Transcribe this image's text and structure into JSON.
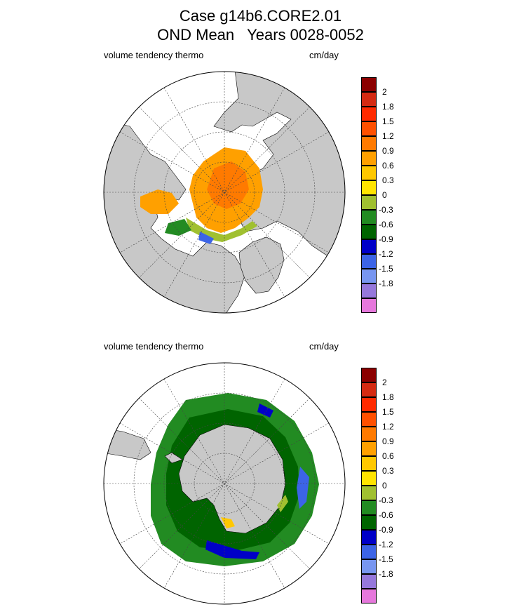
{
  "title": {
    "line1": "Case g14b6.CORE2.01",
    "line2": "OND Mean   Years 0028-0052"
  },
  "panels": [
    {
      "hemisphere": "north",
      "variable_label": "volume tendency thermo",
      "units_label": "cm/day"
    },
    {
      "hemisphere": "south",
      "variable_label": "volume tendency thermo",
      "units_label": "cm/day"
    }
  ],
  "colorbar": {
    "tick_labels": [
      "2",
      "1.8",
      "1.5",
      "1.2",
      "0.9",
      "0.6",
      "0.3",
      "0",
      "-0.3",
      "-0.6",
      "-0.9",
      "-1.2",
      "-1.5",
      "-1.8"
    ],
    "colors_top_to_bottom": [
      "#8b0000",
      "#d42a12",
      "#ff2a00",
      "#ff5000",
      "#ff7a00",
      "#ffa000",
      "#ffc800",
      "#ffe400",
      "#a0c030",
      "#228b22",
      "#006400",
      "#0000c8",
      "#3c64e6",
      "#7896f0",
      "#9678dc",
      "#e678dc"
    ]
  },
  "colors": {
    "land": "#c8c8c8",
    "grid": "#444444"
  }
}
